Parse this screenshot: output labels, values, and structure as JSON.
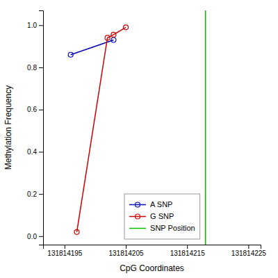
{
  "chart_data": {
    "type": "line",
    "xlabel": "CpG Coordinates",
    "ylabel": "Methylation Frequency",
    "series": [
      {
        "name": "A SNP",
        "color": "#0000bb",
        "marker": "circle",
        "x": [
          131814196,
          131814203
        ],
        "values": [
          0.86,
          0.93
        ]
      },
      {
        "name": "G SNP",
        "color": "#cc0000",
        "marker": "circle",
        "x": [
          131814197,
          131814202,
          131814203,
          131814205
        ],
        "values": [
          0.02,
          0.94,
          0.955,
          0.99
        ]
      },
      {
        "name": "SNP Position",
        "color": "#00bb00",
        "type": "vline",
        "x": [
          131814218
        ]
      }
    ],
    "xlim": [
      131814191.5,
      131814227
    ],
    "ylim": [
      -0.04,
      1.07
    ],
    "xticks": [
      131814195,
      131814205,
      131814215,
      131814225
    ],
    "yticks": [
      {
        "value": 0.0,
        "label": "0.0"
      },
      0.2,
      0.4,
      0.6,
      0.8,
      {
        "value": 1.0,
        "label": "1.0"
      }
    ],
    "grid": false,
    "legend": "lower right"
  }
}
